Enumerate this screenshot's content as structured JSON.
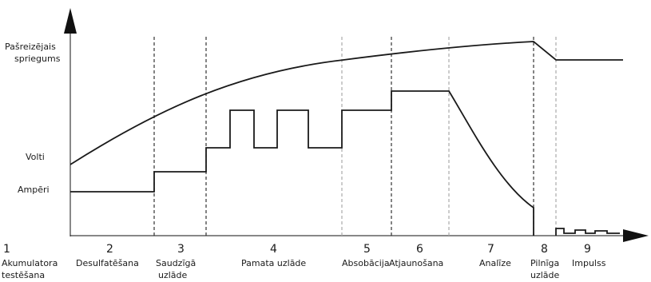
{
  "y_axis_labels": {
    "instant_voltage_line1": "Pašreizējais",
    "instant_voltage_line2": "spriegums",
    "volts": "Volti",
    "amperes": "Ampēri"
  },
  "stages": [
    {
      "num": "1",
      "label": "Akumulatora",
      "label2": "testēšana"
    },
    {
      "num": "2",
      "label": "Desulfatēšana",
      "label2": ""
    },
    {
      "num": "3",
      "label": "Saudzīgā",
      "label2": "uzlāde"
    },
    {
      "num": "4",
      "label": "Pamata uzlāde",
      "label2": ""
    },
    {
      "num": "5",
      "label": "Absobācija",
      "label2": ""
    },
    {
      "num": "6",
      "label": "Atjaunošana",
      "label2": ""
    },
    {
      "num": "7",
      "label": "Analīze",
      "label2": ""
    },
    {
      "num": "8",
      "label": "Pilnīga",
      "label2": "uzlāde"
    },
    {
      "num": "9",
      "label": "Impulss",
      "label2": ""
    }
  ],
  "colors": {
    "line": "#1a1a1a",
    "divider": "#333333",
    "axis": "#111111"
  }
}
